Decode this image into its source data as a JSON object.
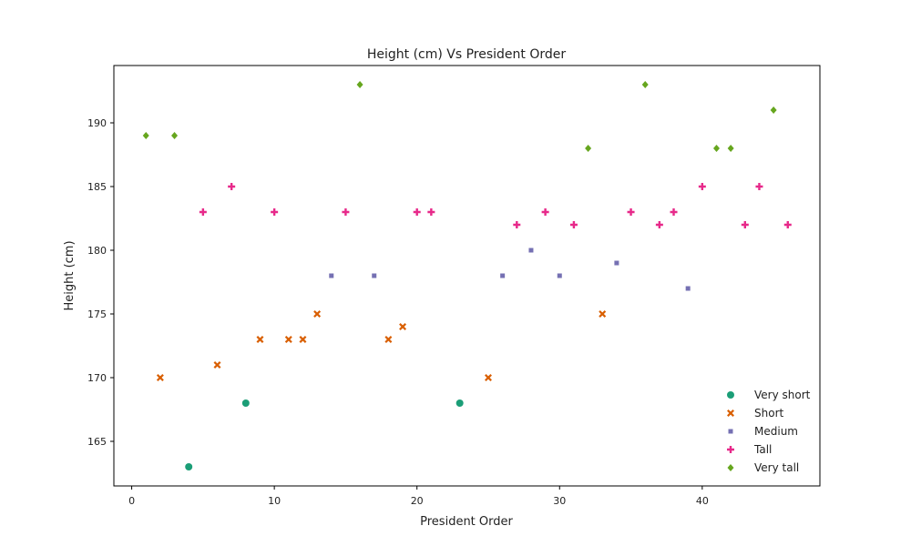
{
  "chart_data": {
    "type": "scatter",
    "title": "Height (cm) Vs President Order",
    "xlabel": "President Order",
    "ylabel": "Height (cm)",
    "xlim": [
      -1.25,
      48.25
    ],
    "ylim": [
      161.5,
      194.5
    ],
    "xticks": [
      0,
      10,
      20,
      30,
      40
    ],
    "yticks": [
      165,
      170,
      175,
      180,
      185,
      190
    ],
    "grid": false,
    "legend_position": "bottom-right",
    "series": [
      {
        "name": "Very short",
        "marker": "circle",
        "color": "#1b9e77",
        "points": [
          [
            4,
            163
          ],
          [
            8,
            168
          ],
          [
            23,
            168
          ]
        ]
      },
      {
        "name": "Short",
        "marker": "x",
        "color": "#d95f02",
        "points": [
          [
            2,
            170
          ],
          [
            6,
            171
          ],
          [
            9,
            173
          ],
          [
            11,
            173
          ],
          [
            12,
            173
          ],
          [
            13,
            175
          ],
          [
            18,
            173
          ],
          [
            19,
            174
          ],
          [
            25,
            170
          ],
          [
            33,
            175
          ]
        ]
      },
      {
        "name": "Medium",
        "marker": "square",
        "color": "#7570b3",
        "points": [
          [
            14,
            178
          ],
          [
            17,
            178
          ],
          [
            26,
            178
          ],
          [
            28,
            180
          ],
          [
            30,
            178
          ],
          [
            34,
            179
          ],
          [
            39,
            177
          ]
        ]
      },
      {
        "name": "Tall",
        "marker": "plus",
        "color": "#e7298a",
        "points": [
          [
            5,
            183
          ],
          [
            7,
            185
          ],
          [
            10,
            183
          ],
          [
            15,
            183
          ],
          [
            20,
            183
          ],
          [
            21,
            183
          ],
          [
            27,
            182
          ],
          [
            29,
            183
          ],
          [
            31,
            182
          ],
          [
            35,
            183
          ],
          [
            37,
            182
          ],
          [
            38,
            183
          ],
          [
            40,
            185
          ],
          [
            43,
            182
          ],
          [
            44,
            185
          ],
          [
            46,
            182
          ]
        ]
      },
      {
        "name": "Very tall",
        "marker": "diamond",
        "color": "#66a61e",
        "points": [
          [
            1,
            189
          ],
          [
            3,
            189
          ],
          [
            16,
            193
          ],
          [
            32,
            188
          ],
          [
            36,
            193
          ],
          [
            41,
            188
          ],
          [
            42,
            188
          ],
          [
            45,
            191
          ]
        ]
      }
    ]
  }
}
